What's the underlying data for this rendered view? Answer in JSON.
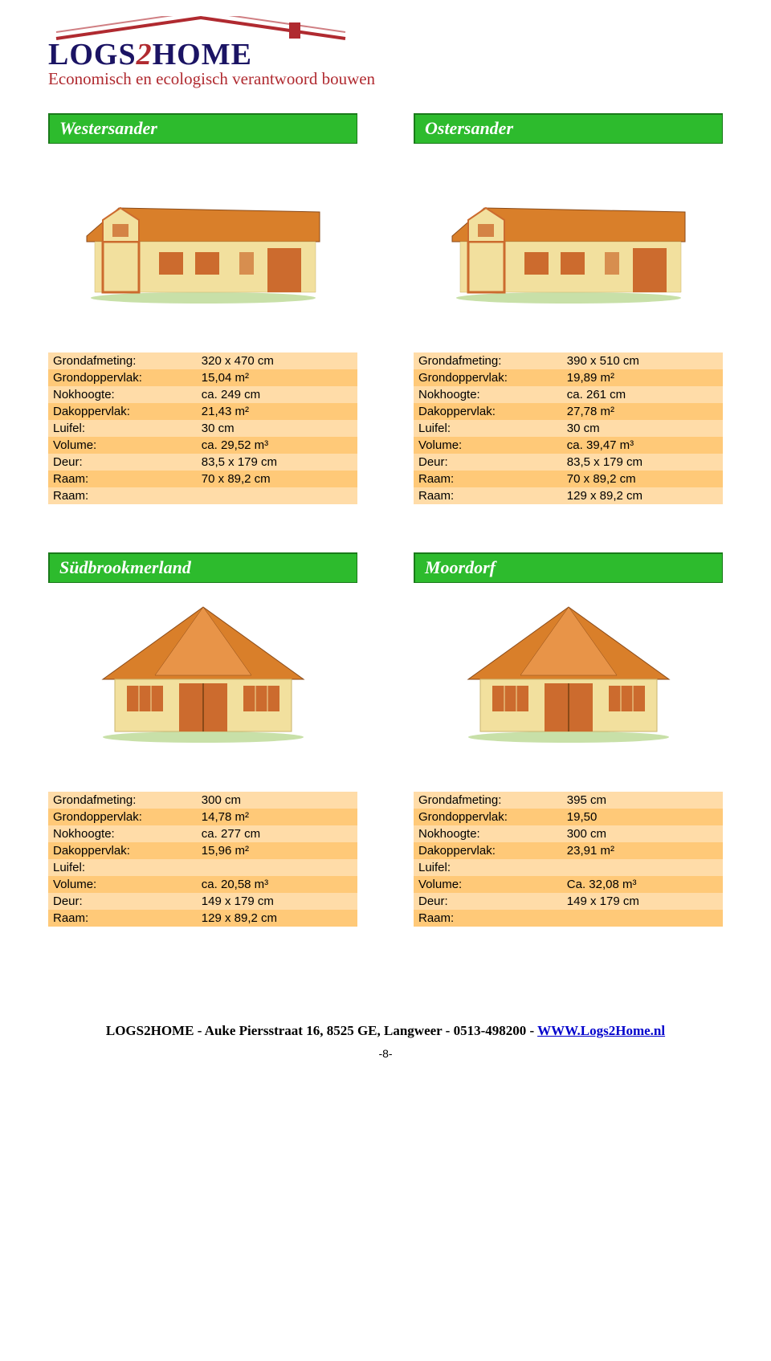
{
  "logo": {
    "main": "LOGS2HOME",
    "script": "Economisch en ecologisch verantwoord bouwen"
  },
  "sections": [
    {
      "left": {
        "title": "Westersander",
        "house": "gable",
        "rows": [
          {
            "label": "Grondafmeting:",
            "value": "320 x 470 cm"
          },
          {
            "label": "Grondoppervlak:",
            "value": "15,04 m²"
          },
          {
            "label": "Nokhoogte:",
            "value": "ca. 249 cm"
          },
          {
            "label": "Dakoppervlak:",
            "value": "21,43 m²"
          },
          {
            "label": "Luifel:",
            "value": "30 cm"
          },
          {
            "label": "Volume:",
            "value": "ca. 29,52 m³"
          },
          {
            "label": "Deur:",
            "value": "83,5 x 179 cm"
          },
          {
            "label": "Raam:",
            "value": "70 x 89,2 cm"
          },
          {
            "label": "Raam:",
            "value": ""
          }
        ]
      },
      "right": {
        "title": "Ostersander",
        "house": "gable",
        "rows": [
          {
            "label": "Grondafmeting:",
            "value": "390 x 510 cm"
          },
          {
            "label": "Grondoppervlak:",
            "value": "19,89 m²"
          },
          {
            "label": "Nokhoogte:",
            "value": "ca. 261 cm"
          },
          {
            "label": "Dakoppervlak:",
            "value": "27,78 m²"
          },
          {
            "label": "Luifel:",
            "value": "30 cm"
          },
          {
            "label": "Volume:",
            "value": "ca. 39,47 m³"
          },
          {
            "label": "Deur:",
            "value": "83,5 x 179 cm"
          },
          {
            "label": "Raam:",
            "value": "70 x 89,2 cm"
          },
          {
            "label": "Raam:",
            "value": "129 x 89,2 cm"
          }
        ]
      }
    },
    {
      "left": {
        "title": "Südbrookmerland",
        "house": "hip",
        "rows": [
          {
            "label": "Grondafmeting:",
            "value": "300 cm"
          },
          {
            "label": "Grondoppervlak:",
            "value": "14,78 m²"
          },
          {
            "label": "Nokhoogte:",
            "value": "ca. 277 cm"
          },
          {
            "label": "Dakoppervlak:",
            "value": "15,96 m²"
          },
          {
            "label": "Luifel:",
            "value": ""
          },
          {
            "label": "Volume:",
            "value": "ca. 20,58 m³"
          },
          {
            "label": "Deur:",
            "value": "149 x 179 cm"
          },
          {
            "label": "Raam:",
            "value": "129 x 89,2 cm"
          }
        ]
      },
      "right": {
        "title": "Moordorf",
        "house": "hip",
        "rows": [
          {
            "label": "Grondafmeting:",
            "value": "395 cm"
          },
          {
            "label": "Grondoppervlak:",
            "value": "19,50"
          },
          {
            "label": "Nokhoogte:",
            "value": "300 cm"
          },
          {
            "label": "Dakoppervlak:",
            "value": "23,91 m²"
          },
          {
            "label": "Luifel:",
            "value": ""
          },
          {
            "label": "Volume:",
            "value": "Ca. 32,08 m³"
          },
          {
            "label": "Deur:",
            "value": "149 x 179 cm"
          },
          {
            "label": "Raam:",
            "value": ""
          }
        ]
      }
    }
  ],
  "footer": {
    "text": "LOGS2HOME - Auke Piersstraat 16, 8525 GE, Langweer - 0513-498200 - ",
    "link": "WWW.Logs2Home.nl",
    "page": "-8-"
  },
  "colors": {
    "green": "#2dbb2d",
    "row_odd": "#ffdca8",
    "row_even": "#ffc978",
    "roof": "#d97f2a",
    "wall": "#f2e09e",
    "door": "#cc6b2e",
    "logo_text": "#1b1464",
    "logo_script": "#b02a30"
  }
}
